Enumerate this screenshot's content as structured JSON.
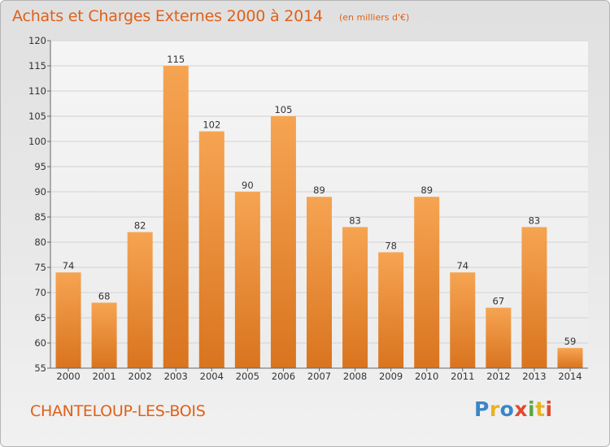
{
  "header": {
    "title": "Achats et Charges Externes 2000 à 2014",
    "unit": "(en milliers d'€)"
  },
  "footer": {
    "town": "CHANTELOUP-LES-BOIS",
    "logo": "Proxiti"
  },
  "colors": {
    "accent": "#e06018",
    "bar_top": "#f6a452",
    "bar_bottom": "#d9741f",
    "logo_letters": [
      "#3a86c8",
      "#e8b422",
      "#3a86c8",
      "#e04a2e",
      "#58a842",
      "#e8b422",
      "#e04a2e"
    ]
  },
  "chart_data": {
    "type": "bar",
    "title": "Achats et Charges Externes 2000 à 2014",
    "categories": [
      "2000",
      "2001",
      "2002",
      "2003",
      "2004",
      "2005",
      "2006",
      "2007",
      "2008",
      "2009",
      "2010",
      "2011",
      "2012",
      "2013",
      "2014"
    ],
    "values": [
      74,
      68,
      82,
      115,
      102,
      90,
      105,
      89,
      83,
      78,
      89,
      74,
      67,
      83,
      59
    ],
    "ylim": [
      55,
      120
    ],
    "yticks": [
      55,
      60,
      65,
      70,
      75,
      80,
      85,
      90,
      95,
      100,
      105,
      110,
      115,
      120
    ],
    "grid": true,
    "data_labels": true
  }
}
